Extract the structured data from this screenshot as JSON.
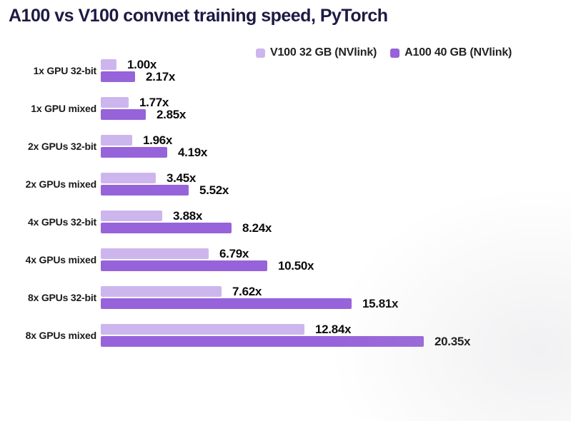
{
  "title": "A100 vs V100 convnet training speed, PyTorch",
  "colors": {
    "title_text": "#1d1a43",
    "category_label_text": "#1a1a1a",
    "value_label_text": "#0a0a0a",
    "legend_text": "#222222",
    "background": "#ffffff",
    "v100_bar": "#cdb6ee",
    "a100_bar": "#9763da"
  },
  "chart_data": {
    "type": "bar",
    "orientation": "horizontal",
    "title": "A100 vs V100 convnet training speed, PyTorch",
    "categories": [
      "1x GPU 32-bit",
      "1x GPU mixed",
      "2x GPUs 32-bit",
      "2x GPUs mixed",
      "4x GPUs 32-bit",
      "4x GPUs mixed",
      "8x GPUs 32-bit",
      "8x GPUs mixed"
    ],
    "series": [
      {
        "name": "V100 32 GB (NVlink)",
        "color": "#cdb6ee",
        "values": [
          1.0,
          1.77,
          1.96,
          3.45,
          3.88,
          6.79,
          7.62,
          12.84
        ],
        "value_labels": [
          "1.00x",
          "1.77x",
          "1.96x",
          "3.45x",
          "3.88x",
          "6.79x",
          "7.62x",
          "12.84x"
        ]
      },
      {
        "name": "A100 40 GB (NVlink)",
        "color": "#9763da",
        "values": [
          2.17,
          2.85,
          4.19,
          5.52,
          8.24,
          10.5,
          15.81,
          20.35
        ],
        "value_labels": [
          "2.17x",
          "2.85x",
          "4.19x",
          "5.52x",
          "8.24x",
          "10.50x",
          "15.81x",
          "20.35x"
        ]
      }
    ],
    "value_suffix": "x",
    "xlim": [
      0,
      22
    ],
    "legend_position": "top-right",
    "grid": false,
    "axes_visible": false
  }
}
